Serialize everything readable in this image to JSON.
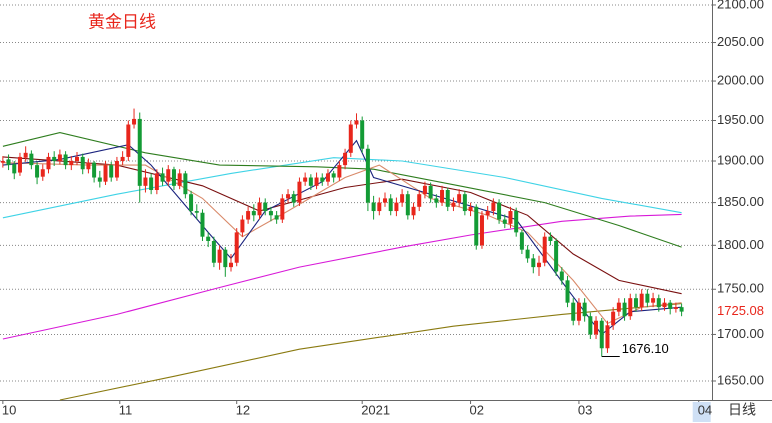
{
  "chart_data": {
    "type": "candlestick",
    "title": "黄金日线",
    "period_label": "日线",
    "log_scale": true,
    "grid": true,
    "up_color": "#e8261c",
    "down_color": "#139b35",
    "ylim": [
      1630,
      2106.7
    ],
    "yticks": [
      {
        "value": 1650,
        "label": "1650.00"
      },
      {
        "value": 1700,
        "label": "1700.00"
      },
      {
        "value": 1750,
        "label": "1750.00"
      },
      {
        "value": 1800,
        "label": "1800.00"
      },
      {
        "value": 1850,
        "label": "1850.00"
      },
      {
        "value": 1900,
        "label": "1900.00"
      },
      {
        "value": 1950,
        "label": "1950.00"
      },
      {
        "value": 2000,
        "label": "2000.00"
      },
      {
        "value": 2050,
        "label": "2050.00"
      },
      {
        "value": 2100,
        "label": "2100.00"
      }
    ],
    "xlim": [
      -0.5,
      121.7
    ],
    "xticks": [
      {
        "value": 0,
        "label": "10"
      },
      {
        "value": 20.5,
        "label": "11"
      },
      {
        "value": 41,
        "label": "12"
      },
      {
        "value": 63,
        "label": "2021"
      },
      {
        "value": 82,
        "label": "02"
      },
      {
        "value": 101,
        "label": "03"
      },
      {
        "value": 122,
        "label": "04"
      }
    ],
    "last_price": 1725.08,
    "annotations": [
      {
        "value": 1676.1,
        "label": "1676.10"
      }
    ],
    "candles": [
      [
        1898,
        1906,
        1892,
        1900
      ],
      [
        1902,
        1908,
        1889,
        1895
      ],
      [
        1896,
        1900,
        1878,
        1885
      ],
      [
        1886,
        1910,
        1882,
        1905
      ],
      [
        1904,
        1918,
        1899,
        1910
      ],
      [
        1909,
        1913,
        1890,
        1895
      ],
      [
        1895,
        1899,
        1872,
        1880
      ],
      [
        1881,
        1896,
        1876,
        1890
      ],
      [
        1890,
        1910,
        1885,
        1905
      ],
      [
        1905,
        1912,
        1894,
        1900
      ],
      [
        1900,
        1914,
        1896,
        1908
      ],
      [
        1908,
        1912,
        1890,
        1895
      ],
      [
        1895,
        1906,
        1889,
        1900
      ],
      [
        1900,
        1911,
        1895,
        1905
      ],
      [
        1905,
        1909,
        1884,
        1890
      ],
      [
        1890,
        1903,
        1885,
        1898
      ],
      [
        1898,
        1900,
        1874,
        1880
      ],
      [
        1880,
        1888,
        1868,
        1875
      ],
      [
        1875,
        1900,
        1871,
        1895
      ],
      [
        1895,
        1899,
        1875,
        1880
      ],
      [
        1880,
        1905,
        1876,
        1900
      ],
      [
        1900,
        1912,
        1895,
        1905
      ],
      [
        1905,
        1950,
        1900,
        1945
      ],
      [
        1945,
        1965,
        1940,
        1952
      ],
      [
        1952,
        1960,
        1850,
        1870
      ],
      [
        1870,
        1890,
        1862,
        1880
      ],
      [
        1880,
        1885,
        1860,
        1865
      ],
      [
        1865,
        1890,
        1860,
        1885
      ],
      [
        1885,
        1892,
        1870,
        1875
      ],
      [
        1875,
        1895,
        1870,
        1890
      ],
      [
        1890,
        1893,
        1865,
        1870
      ],
      [
        1870,
        1890,
        1866,
        1885
      ],
      [
        1885,
        1888,
        1855,
        1860
      ],
      [
        1860,
        1864,
        1835,
        1840
      ],
      [
        1840,
        1848,
        1830,
        1838
      ],
      [
        1838,
        1842,
        1805,
        1810
      ],
      [
        1810,
        1815,
        1798,
        1805
      ],
      [
        1805,
        1810,
        1775,
        1780
      ],
      [
        1780,
        1800,
        1772,
        1795
      ],
      [
        1795,
        1798,
        1764,
        1775
      ],
      [
        1775,
        1790,
        1770,
        1780
      ],
      [
        1780,
        1820,
        1776,
        1815
      ],
      [
        1815,
        1835,
        1810,
        1830
      ],
      [
        1830,
        1845,
        1825,
        1840
      ],
      [
        1840,
        1848,
        1828,
        1835
      ],
      [
        1835,
        1856,
        1830,
        1850
      ],
      [
        1850,
        1855,
        1835,
        1840
      ],
      [
        1840,
        1845,
        1828,
        1835
      ],
      [
        1835,
        1840,
        1825,
        1830
      ],
      [
        1830,
        1860,
        1826,
        1855
      ],
      [
        1855,
        1866,
        1850,
        1860
      ],
      [
        1860,
        1864,
        1845,
        1850
      ],
      [
        1850,
        1880,
        1846,
        1875
      ],
      [
        1875,
        1886,
        1870,
        1880
      ],
      [
        1880,
        1884,
        1865,
        1870
      ],
      [
        1870,
        1886,
        1866,
        1880
      ],
      [
        1880,
        1885,
        1870,
        1875
      ],
      [
        1875,
        1890,
        1870,
        1885
      ],
      [
        1885,
        1888,
        1874,
        1880
      ],
      [
        1880,
        1900,
        1876,
        1895
      ],
      [
        1895,
        1915,
        1890,
        1910
      ],
      [
        1910,
        1950,
        1905,
        1945
      ],
      [
        1945,
        1959,
        1940,
        1950
      ],
      [
        1950,
        1955,
        1910,
        1915
      ],
      [
        1915,
        1920,
        1840,
        1850
      ],
      [
        1850,
        1858,
        1830,
        1840
      ],
      [
        1840,
        1856,
        1835,
        1850
      ],
      [
        1850,
        1862,
        1845,
        1855
      ],
      [
        1855,
        1860,
        1835,
        1840
      ],
      [
        1840,
        1856,
        1834,
        1850
      ],
      [
        1850,
        1866,
        1845,
        1860
      ],
      [
        1860,
        1864,
        1830,
        1835
      ],
      [
        1835,
        1850,
        1830,
        1845
      ],
      [
        1845,
        1865,
        1840,
        1860
      ],
      [
        1860,
        1875,
        1855,
        1870
      ],
      [
        1870,
        1874,
        1850,
        1855
      ],
      [
        1855,
        1860,
        1844,
        1850
      ],
      [
        1850,
        1870,
        1846,
        1865
      ],
      [
        1865,
        1868,
        1840,
        1845
      ],
      [
        1845,
        1856,
        1840,
        1850
      ],
      [
        1850,
        1866,
        1845,
        1860
      ],
      [
        1860,
        1864,
        1835,
        1840
      ],
      [
        1840,
        1850,
        1834,
        1845
      ],
      [
        1845,
        1848,
        1795,
        1800
      ],
      [
        1800,
        1840,
        1796,
        1835
      ],
      [
        1835,
        1846,
        1830,
        1840
      ],
      [
        1840,
        1855,
        1835,
        1850
      ],
      [
        1850,
        1854,
        1825,
        1830
      ],
      [
        1830,
        1836,
        1820,
        1825
      ],
      [
        1825,
        1845,
        1820,
        1840
      ],
      [
        1840,
        1844,
        1810,
        1815
      ],
      [
        1815,
        1818,
        1790,
        1795
      ],
      [
        1795,
        1800,
        1780,
        1785
      ],
      [
        1785,
        1790,
        1768,
        1775
      ],
      [
        1775,
        1788,
        1765,
        1780
      ],
      [
        1780,
        1815,
        1776,
        1810
      ],
      [
        1810,
        1815,
        1800,
        1805
      ],
      [
        1805,
        1808,
        1765,
        1770
      ],
      [
        1770,
        1775,
        1755,
        1760
      ],
      [
        1760,
        1765,
        1730,
        1735
      ],
      [
        1735,
        1740,
        1710,
        1715
      ],
      [
        1715,
        1740,
        1710,
        1735
      ],
      [
        1735,
        1740,
        1714,
        1720
      ],
      [
        1720,
        1724,
        1695,
        1700
      ],
      [
        1700,
        1720,
        1695,
        1715
      ],
      [
        1715,
        1718,
        1676.1,
        1685
      ],
      [
        1685,
        1715,
        1680,
        1710
      ],
      [
        1710,
        1730,
        1705,
        1725
      ],
      [
        1725,
        1740,
        1720,
        1735
      ],
      [
        1735,
        1740,
        1715,
        1720
      ],
      [
        1720,
        1745,
        1716,
        1740
      ],
      [
        1740,
        1745,
        1725,
        1730
      ],
      [
        1730,
        1750,
        1726,
        1745
      ],
      [
        1745,
        1750,
        1730,
        1735
      ],
      [
        1735,
        1746,
        1730,
        1740
      ],
      [
        1740,
        1744,
        1725,
        1730
      ],
      [
        1730,
        1740,
        1726,
        1735
      ],
      [
        1735,
        1738,
        1722,
        1728
      ],
      [
        1728,
        1735,
        1724,
        1730
      ],
      [
        1730,
        1734,
        1720,
        1725.08
      ]
    ],
    "moving_averages": [
      {
        "color": "#3fd3e6",
        "x": [
          0,
          20,
          40,
          58,
          70,
          88,
          105,
          119
        ],
        "values": [
          1832,
          1860,
          1885,
          1904,
          1900,
          1880,
          1855,
          1838
        ]
      },
      {
        "color": "#d81ad8",
        "x": [
          0,
          20,
          38,
          52,
          70,
          82,
          98,
          110,
          119
        ],
        "values": [
          1695,
          1722,
          1752,
          1775,
          1798,
          1812,
          1828,
          1834,
          1836
        ]
      },
      {
        "color": "#8a7a10",
        "x": [
          10,
          30,
          52,
          79,
          98,
          119
        ],
        "values": [
          1630,
          1655,
          1684,
          1709,
          1722,
          1734
        ]
      },
      {
        "color": "#2e7d1e",
        "x": [
          0,
          10,
          25,
          38,
          55,
          65,
          80,
          95,
          108,
          119
        ],
        "values": [
          1918,
          1935,
          1910,
          1895,
          1893,
          1890,
          1870,
          1850,
          1823,
          1798
        ]
      },
      {
        "color": "#7a1010",
        "x": [
          0,
          20,
          35,
          45,
          60,
          70,
          82,
          92,
          100,
          108,
          119
        ],
        "values": [
          1905,
          1895,
          1870,
          1840,
          1868,
          1878,
          1862,
          1835,
          1790,
          1760,
          1745
        ]
      },
      {
        "color": "#d98a6a",
        "x": [
          0,
          15,
          25,
          35,
          42,
          50,
          60,
          66,
          75,
          85,
          92,
          100,
          106,
          112,
          119
        ],
        "values": [
          1898,
          1895,
          1895,
          1855,
          1810,
          1840,
          1880,
          1895,
          1855,
          1835,
          1815,
          1760,
          1712,
          1730,
          1735
        ]
      },
      {
        "color": "#1a237e",
        "x": [
          0,
          10,
          22,
          26,
          36,
          40,
          46,
          56,
          62,
          65,
          80,
          90,
          99,
          105,
          110,
          119
        ],
        "values": [
          1895,
          1902,
          1920,
          1895,
          1815,
          1785,
          1840,
          1875,
          1925,
          1880,
          1850,
          1830,
          1750,
          1700,
          1725,
          1730
        ]
      }
    ]
  }
}
